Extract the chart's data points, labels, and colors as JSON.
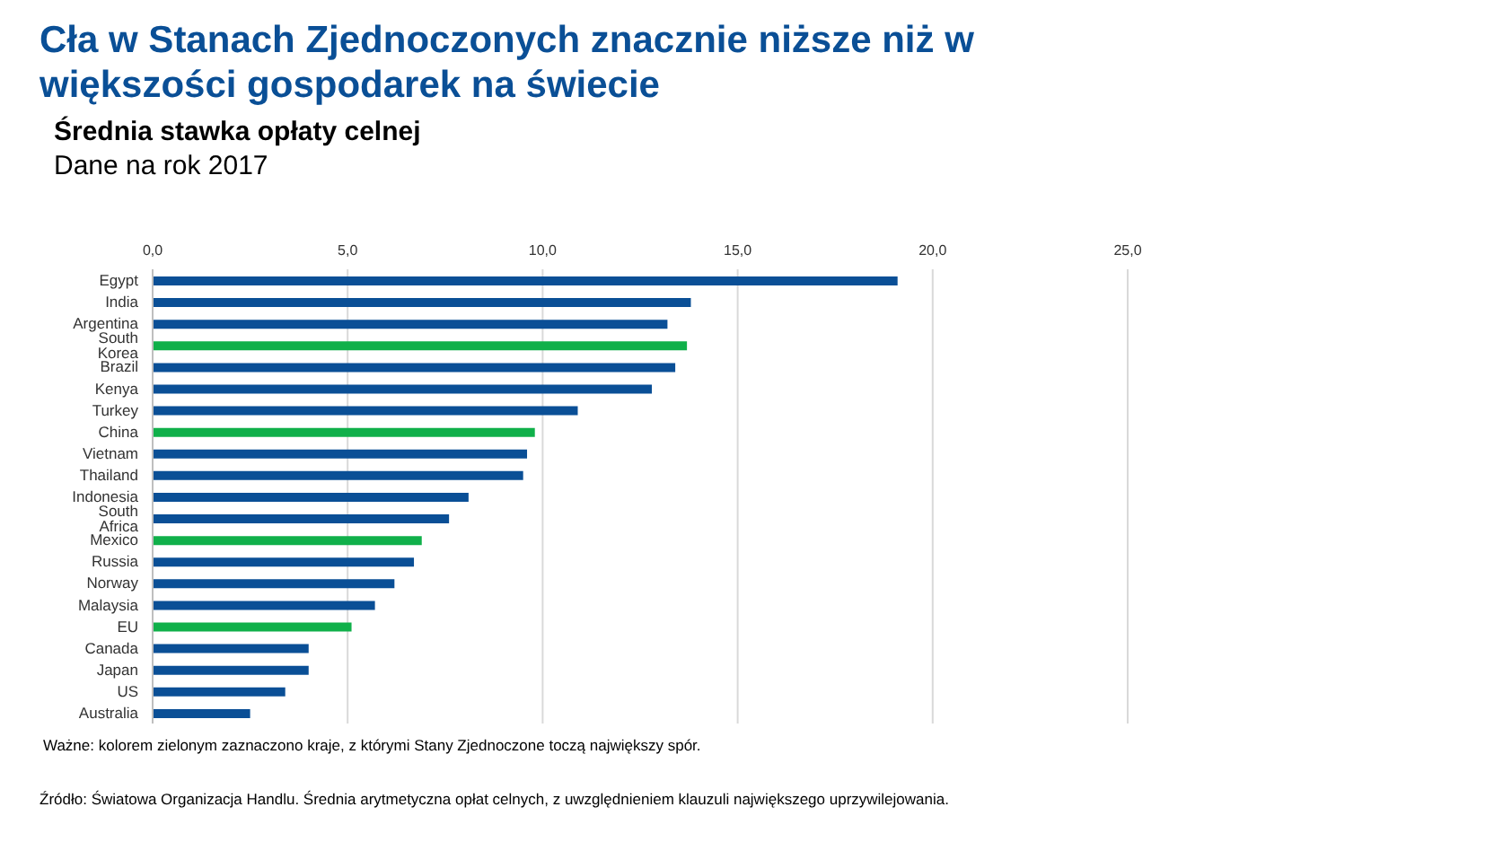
{
  "chart_data": {
    "type": "bar",
    "orientation": "horizontal",
    "title": "Cła w Stanach Zjednoczonych znacznie niższe niż w większości gospodarek na świecie",
    "subtitle": "Średnia stawka opłaty celnej\nDane na rok 2017",
    "categories": [
      "Egypt",
      "India",
      "Argentina",
      "South Korea",
      "Brazil",
      "Kenya",
      "Turkey",
      "China",
      "Vietnam",
      "Thailand",
      "Indonesia",
      "South Africa",
      "Mexico",
      "Russia",
      "Norway",
      "Malaysia",
      "EU",
      "Canada",
      "Japan",
      "US",
      "Australia"
    ],
    "values": [
      19.1,
      13.8,
      13.2,
      13.7,
      13.4,
      12.8,
      10.9,
      9.8,
      9.6,
      9.5,
      8.1,
      7.6,
      6.9,
      6.7,
      6.2,
      5.7,
      5.1,
      4.0,
      4.0,
      3.4,
      2.5
    ],
    "colors": [
      "#0a4f96",
      "#0a4f96",
      "#0a4f96",
      "#10b04a",
      "#0a4f96",
      "#0a4f96",
      "#0a4f96",
      "#10b04a",
      "#0a4f96",
      "#0a4f96",
      "#0a4f96",
      "#0a4f96",
      "#10b04a",
      "#0a4f96",
      "#0a4f96",
      "#0a4f96",
      "#10b04a",
      "#0a4f96",
      "#0a4f96",
      "#0a4f96",
      "#0a4f96"
    ],
    "xlim": [
      0,
      25
    ],
    "xticks": [
      {
        "value": 0,
        "label": "0,0"
      },
      {
        "value": 5,
        "label": "5,0"
      },
      {
        "value": 10,
        "label": "10,0"
      },
      {
        "value": 15,
        "label": "15,0"
      },
      {
        "value": 20,
        "label": "20,0"
      },
      {
        "value": 25,
        "label": "25,0"
      }
    ],
    "grid": "x",
    "legend": false,
    "annotations": [
      "Ważne: kolorem zielonym zaznaczono kraje, z którymi Stany Zjednoczone toczą największy spór.",
      "Źródło: Światowa Organizacja Handlu. Średnia arytmetyczna opłat celnych, z uwzględnieniem klauzuli największego uprzywilejowania."
    ]
  }
}
